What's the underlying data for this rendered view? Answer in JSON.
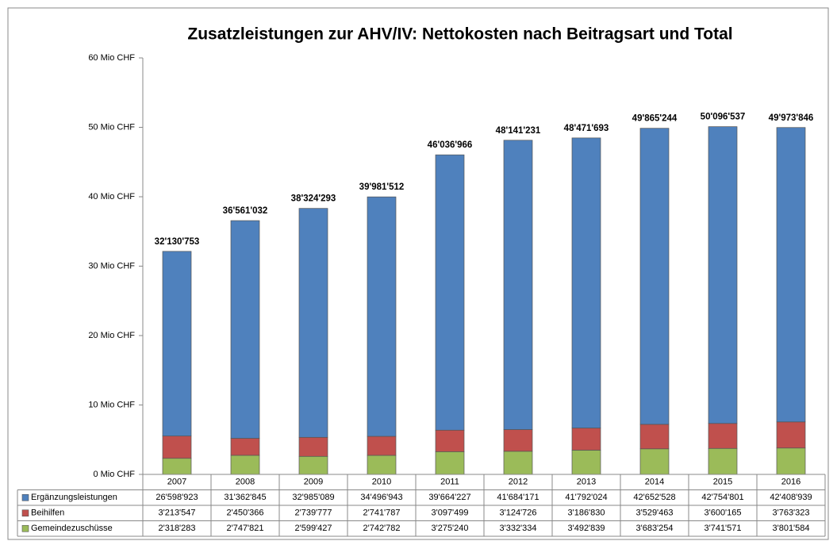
{
  "chart_data": {
    "type": "bar",
    "stacked": true,
    "title": "Zusatzleistungen zur AHV/IV: Nettokosten nach Beitragsart und Total",
    "categories": [
      "2007",
      "2008",
      "2009",
      "2010",
      "2011",
      "2012",
      "2013",
      "2014",
      "2015",
      "2016"
    ],
    "series": [
      {
        "name": "Gemeindezuschüsse",
        "color": "#9bbb59",
        "values": [
          2318283,
          2747821,
          2599427,
          2742782,
          3275240,
          3332334,
          3492839,
          3683254,
          3741571,
          3801584
        ],
        "value_labels": [
          "2'318'283",
          "2'747'821",
          "2'599'427",
          "2'742'782",
          "3'275'240",
          "3'332'334",
          "3'492'839",
          "3'683'254",
          "3'741'571",
          "3'801'584"
        ]
      },
      {
        "name": "Beihilfen",
        "color": "#c0504d",
        "values": [
          3213547,
          2450366,
          2739777,
          2741787,
          3097499,
          3124726,
          3186830,
          3529463,
          3600165,
          3763323
        ],
        "value_labels": [
          "3'213'547",
          "2'450'366",
          "2'739'777",
          "2'741'787",
          "3'097'499",
          "3'124'726",
          "3'186'830",
          "3'529'463",
          "3'600'165",
          "3'763'323"
        ]
      },
      {
        "name": "Ergänzungsleistungen",
        "color": "#4f81bd",
        "values": [
          26598923,
          31362845,
          32985089,
          34496943,
          39664227,
          41684171,
          41792024,
          42652528,
          42754801,
          42408939
        ],
        "value_labels": [
          "26'598'923",
          "31'362'845",
          "32'985'089",
          "34'496'943",
          "39'664'227",
          "41'684'171",
          "41'792'024",
          "42'652'528",
          "42'754'801",
          "42'408'939"
        ]
      }
    ],
    "totals": {
      "values": [
        32130753,
        36561032,
        38324293,
        39981512,
        46036966,
        48141231,
        48471693,
        49865244,
        50096537,
        49973846
      ],
      "value_labels": [
        "32'130'753",
        "36'561'032",
        "38'324'293",
        "39'981'512",
        "46'036'966",
        "48'141'231",
        "48'471'693",
        "49'865'244",
        "50'096'537",
        "49'973'846"
      ]
    },
    "ylim": [
      0,
      60000000
    ],
    "yticks": [
      {
        "value": 0,
        "label": "0 Mio CHF"
      },
      {
        "value": 10000000,
        "label": "10 Mio CHF"
      },
      {
        "value": 20000000,
        "label": "20 Mio CHF"
      },
      {
        "value": 30000000,
        "label": "30 Mio CHF"
      },
      {
        "value": 40000000,
        "label": "40 Mio CHF"
      },
      {
        "value": 50000000,
        "label": "50 Mio CHF"
      },
      {
        "value": 60000000,
        "label": "60 Mio CHF"
      }
    ],
    "grid": false,
    "legend": "table"
  }
}
